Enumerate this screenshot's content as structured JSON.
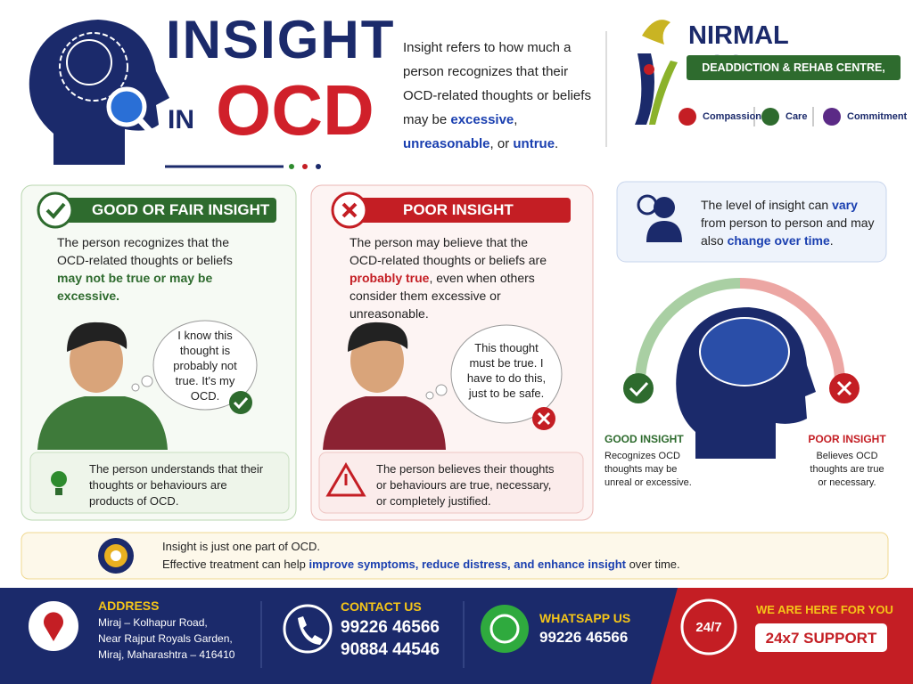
{
  "header": {
    "title_line1": "INSIGHT",
    "title_line2_prefix": "IN",
    "title_line2": "OCD",
    "intro": [
      "Insight refers to how much a person recognizes that their OCD-related thoughts or beliefs may be ",
      "excessive",
      ", ",
      "unreasonable",
      ", or ",
      "untrue",
      "."
    ]
  },
  "hospital": {
    "name": "NIRMAL HOSPITAL",
    "subtitle": "DEADDICTION & REHAB CENTRE, MIRAJ",
    "values": [
      "Compassion",
      "Care",
      "Commitment"
    ]
  },
  "good": {
    "heading": "GOOD OR FAIR INSIGHT",
    "description": [
      "The person recognizes that the OCD-related thoughts or beliefs ",
      "may not be true or may be excessive."
    ],
    "thought": "I know this thought is probably not true. It's my OCD.",
    "note": "The person understands that their thoughts or behaviours are products of OCD."
  },
  "poor": {
    "heading": "POOR INSIGHT",
    "description": [
      "The person may believe that the OCD-related thoughts or beliefs are ",
      "probably true",
      ", even when others consider them excessive or unreasonable."
    ],
    "thought": "This thought must be true. I have to do this, just to be safe.",
    "note": "The person believes their thoughts or behaviours are true, necessary, or completely justified."
  },
  "variation": [
    "The level of insight can ",
    "vary",
    " from person to person and may also ",
    "change over time",
    "."
  ],
  "spectrum": {
    "good_label": "GOOD INSIGHT",
    "good_text": "Recognizes OCD thoughts may be unreal or excessive.",
    "poor_label": "POOR INSIGHT",
    "poor_text": "Believes OCD thoughts are true or necessary."
  },
  "banner": {
    "line1": "Insight is just one part of OCD.",
    "line2": [
      "Effective treatment can help ",
      "improve symptoms, reduce distress, and enhance insight",
      " over time."
    ]
  },
  "footer": {
    "address_label": "ADDRESS",
    "address_lines": [
      "Miraj – Kolhapur Road,",
      "Near Rajput Royals Garden,",
      "Miraj, Maharashtra – 416410"
    ],
    "contact_label": "CONTACT US",
    "phones": [
      "99226 46566",
      "90884 44546"
    ],
    "whatsapp_label": "WHATSAPP US",
    "whatsapp": "99226 46566",
    "badge": "24/7",
    "support_label": "WE ARE HERE FOR YOU",
    "support": "24x7 SUPPORT"
  }
}
